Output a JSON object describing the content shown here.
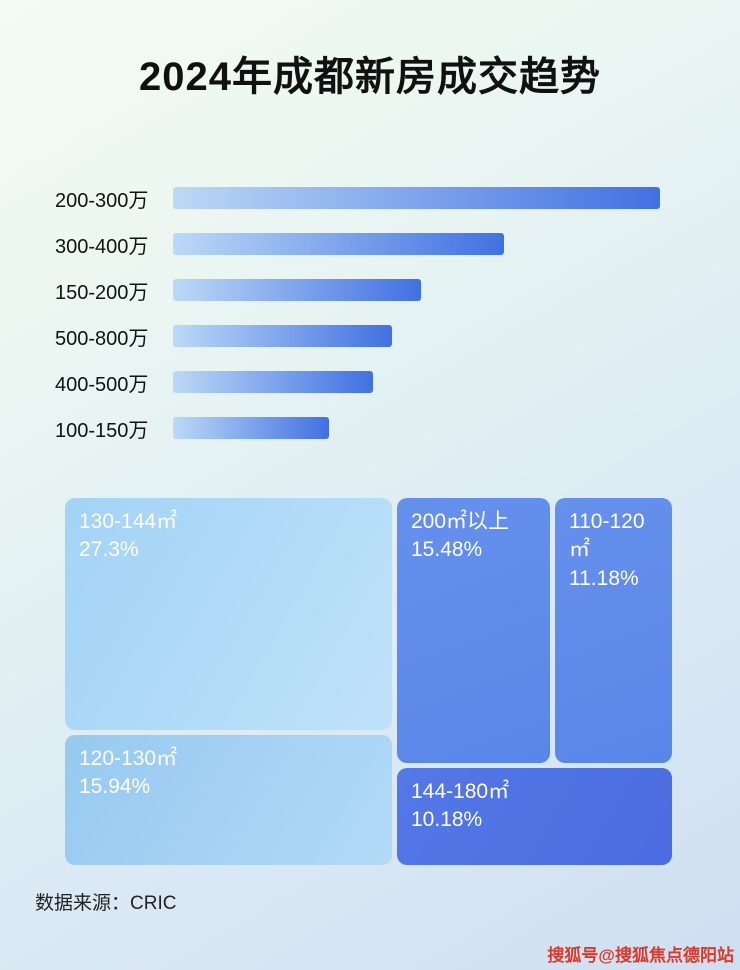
{
  "title": "2024年成都新房成交趋势",
  "source": "数据来源：CRIC",
  "watermark": "搜狐号@搜狐焦点德阳站",
  "colors": {
    "bar_gradient_start": "#bcd9f6",
    "bar_gradient_end": "#4170e2",
    "block_light": "#a3d3f5",
    "block_light2": "#97c9f0",
    "block_medium": "#5a86e8",
    "block_dark": "#4a6ce0",
    "watermark_red": "#d93a2b"
  },
  "chart_data": [
    {
      "type": "bar",
      "orientation": "horizontal",
      "title": "2024年成都新房成交趋势",
      "categories": [
        "200-300万",
        "300-400万",
        "150-200万",
        "500-800万",
        "400-500万",
        "100-150万"
      ],
      "values": [
        100,
        68,
        51,
        45,
        41,
        32
      ],
      "xlabel": "",
      "ylabel": "",
      "xlim": [
        0,
        100
      ],
      "grid": false,
      "legend": false
    },
    {
      "type": "treemap",
      "items": [
        {
          "label": "130-144㎡",
          "value": "27.3%"
        },
        {
          "label": "120-130㎡",
          "value": "15.94%"
        },
        {
          "label": "200㎡以上",
          "value": "15.48%"
        },
        {
          "label": "110-120㎡",
          "value": "11.18%"
        },
        {
          "label": "144-180㎡",
          "value": "10.18%"
        }
      ]
    }
  ]
}
